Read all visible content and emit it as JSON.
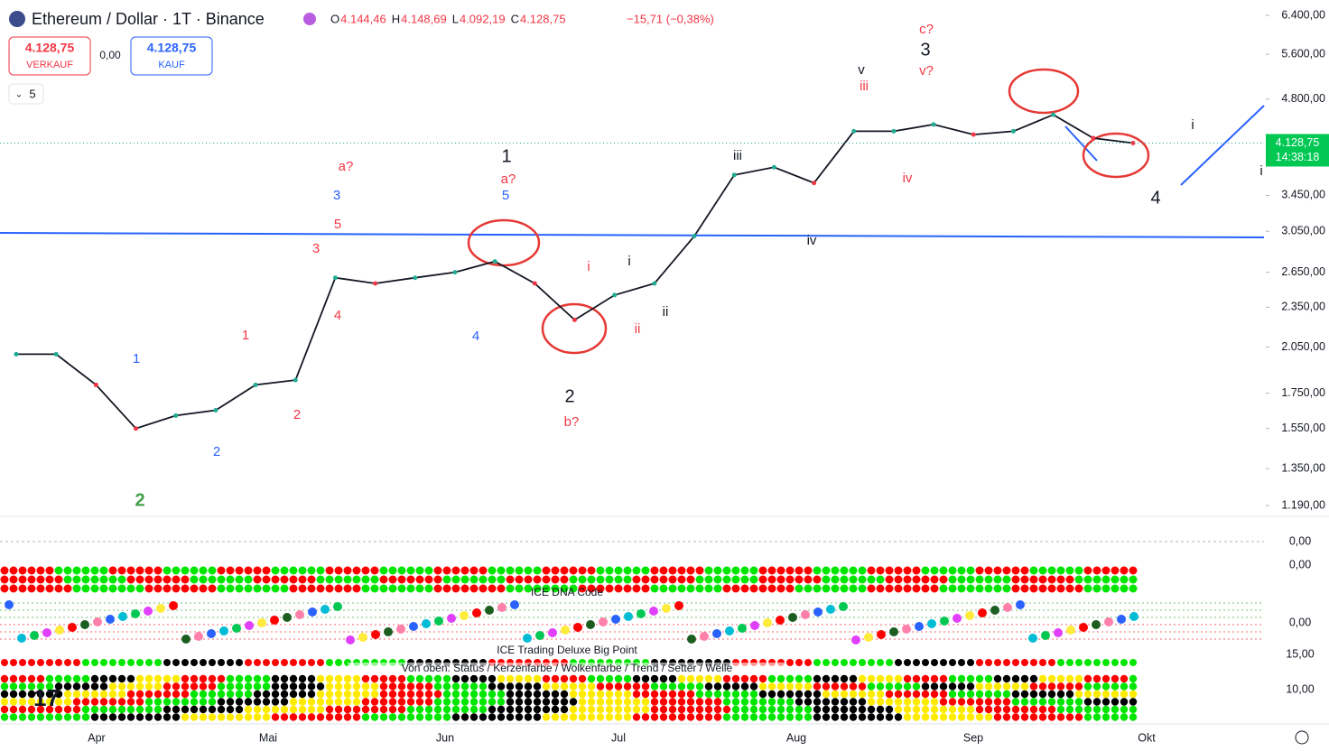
{
  "header": {
    "symbol": "Ethereum / Dollar · 1T · Binance",
    "ohlc": [
      {
        "key": "O",
        "value": "4.144,46"
      },
      {
        "key": "H",
        "value": "4.148,69"
      },
      {
        "key": "L",
        "value": "4.092,19"
      },
      {
        "key": "C",
        "value": "4.128,75"
      }
    ],
    "change": "−15,71 (−0,38%)"
  },
  "trade": {
    "sell_price": "4.128,75",
    "sell_label": "VERKAUF",
    "spread": "0,00",
    "buy_price": "4.128,75",
    "buy_label": "KAUF",
    "collapse": "5"
  },
  "chart_data": {
    "type": "line",
    "log_scale": true,
    "color": "#131722",
    "ylim": [
      1190,
      6400
    ],
    "yticks": [
      {
        "value": 6400,
        "label": "6.400,00"
      },
      {
        "value": 5600,
        "label": "5.600,00"
      },
      {
        "value": 4800,
        "label": "4.800,00"
      },
      {
        "value": 3450,
        "label": "3.450,00"
      },
      {
        "value": 3050,
        "label": "3.050,00"
      },
      {
        "value": 2650,
        "label": "2.650,00"
      },
      {
        "value": 2350,
        "label": "2.350,00"
      },
      {
        "value": 2050,
        "label": "2.050,00"
      },
      {
        "value": 1750,
        "label": "1.750,00"
      },
      {
        "value": 1550,
        "label": "1.550,00"
      },
      {
        "value": 1350,
        "label": "1.350,00"
      },
      {
        "value": 1190,
        "label": "1.190,00"
      }
    ],
    "last_price": {
      "value": 4128.75,
      "label": "4.128,75"
    },
    "countdown": "14:38:18",
    "months": [
      "Apr",
      "Mai",
      "Jun",
      "Jul",
      "Aug",
      "Sep",
      "Okt"
    ],
    "values": [
      2000,
      2000,
      1800,
      1550,
      1620,
      1650,
      1800,
      1830,
      2600,
      2550,
      2600,
      2650,
      2750,
      2550,
      2250,
      2450,
      2550,
      3000,
      3700,
      3800,
      3600,
      4300,
      4300,
      4400,
      4250,
      4300,
      4550,
      4200,
      4128.75
    ],
    "annotations": [
      "a?",
      "3",
      "5",
      "3",
      "4",
      "1",
      "1",
      "2",
      "2",
      "2",
      "1",
      "a?",
      "5",
      "i",
      "4",
      "2",
      "b?",
      "i",
      "ii",
      "ii",
      "iii",
      "iv",
      "v",
      "iii",
      "c?",
      "3",
      "v?",
      "iv",
      "i",
      "4",
      "i"
    ]
  },
  "indicators": {
    "macd_label": "0,00",
    "dna_axis": "0,00",
    "dna_title": "ICE DNA Code",
    "dna_zero": "0,00",
    "bp_top": "15,00",
    "bp_title": "ICE Trading Deluxe Big Point",
    "bp_subtitle": "Von oben: Status / Kerzenfarbe / Wolkenfarbe / Trend / Setter / Welle",
    "bp_low": "10,00"
  }
}
